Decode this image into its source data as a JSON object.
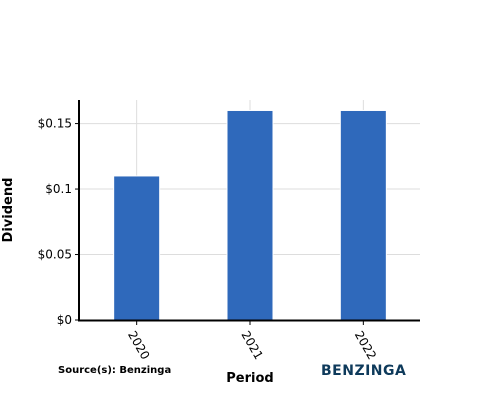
{
  "chart_data": {
    "type": "bar",
    "categories": [
      "2020",
      "2021",
      "2022"
    ],
    "values": [
      0.11,
      0.16,
      0.16
    ],
    "xlabel": "Period",
    "ylabel": "Dividend",
    "ylim": [
      0,
      0.168
    ],
    "yticks": [
      0,
      0.05,
      0.1,
      0.15
    ],
    "ytick_labels": [
      "$0",
      "$0.05",
      "$0.1",
      "$0.15"
    ],
    "grid": true,
    "bar_color": "#2f69bb"
  },
  "footer": {
    "source": "Source(s): Benzinga",
    "brand": "BENZINGA"
  }
}
